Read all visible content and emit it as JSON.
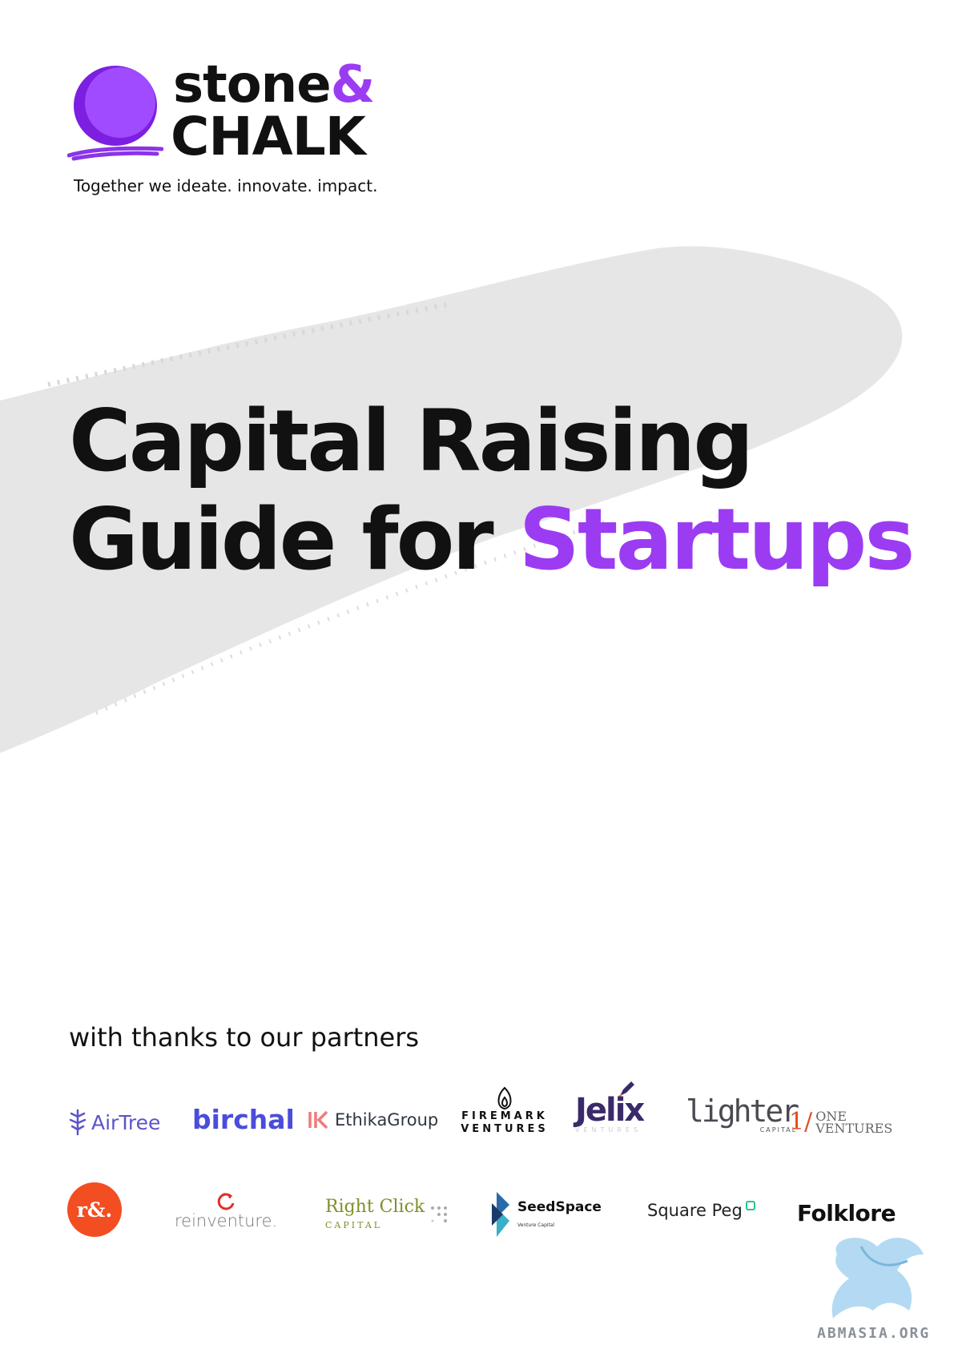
{
  "brand": {
    "word_1": "stone",
    "ampersand": "&",
    "word_2": "CHALK",
    "tagline": "Together we ideate. innovate. impact.",
    "accent_color": "#9b3cf2"
  },
  "title": {
    "line_1": "Capital Raising",
    "line_2_prefix": "Guide for ",
    "line_2_accent": "Startups"
  },
  "partners": {
    "heading": "with thanks to our partners",
    "airtree": "AirTree",
    "birchal": "birchal",
    "ethika": "EthikaGroup",
    "firemark_1": "FIREMARK",
    "firemark_2": "VENTURES",
    "jelix": "Jelix",
    "jelix_sub": "VENTURES",
    "lighter": "lighter",
    "lighter_sub": "CAPITAL",
    "one_num": "1/",
    "one_1": "ONE",
    "one_2": "VENTURES",
    "rand": "r&.",
    "reinventure": "reinventure.",
    "rightclick": "Right Click",
    "rightclick_sub": "CAPITAL",
    "seedspace": "SeedSpace",
    "seedspace_sub": "Venture Capital",
    "squarepeg": "Square Peg",
    "folklore": "Folklore"
  },
  "watermark": {
    "text": "ABMASIA.ORG"
  }
}
